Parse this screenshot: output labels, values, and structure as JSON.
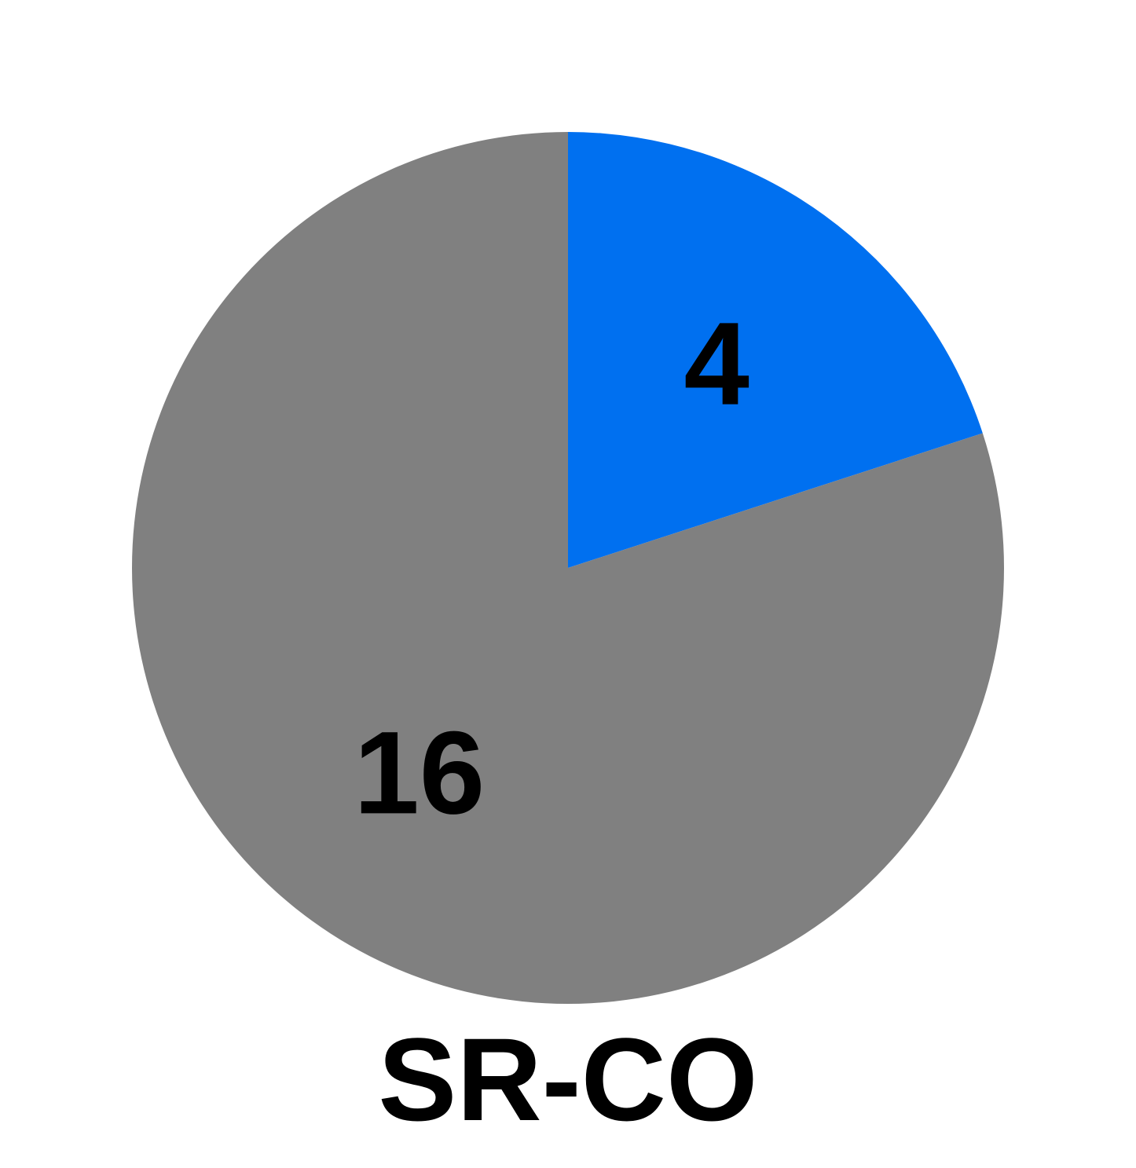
{
  "chart_data": {
    "type": "pie",
    "title": "SR-CO",
    "categories": [
      "",
      ""
    ],
    "values": [
      4,
      16
    ],
    "data_labels": [
      "4",
      "16"
    ],
    "colors": [
      "#0070F0",
      "#808080"
    ],
    "start_angle_deg": 0,
    "direction": "clockwise",
    "legend": "none"
  }
}
